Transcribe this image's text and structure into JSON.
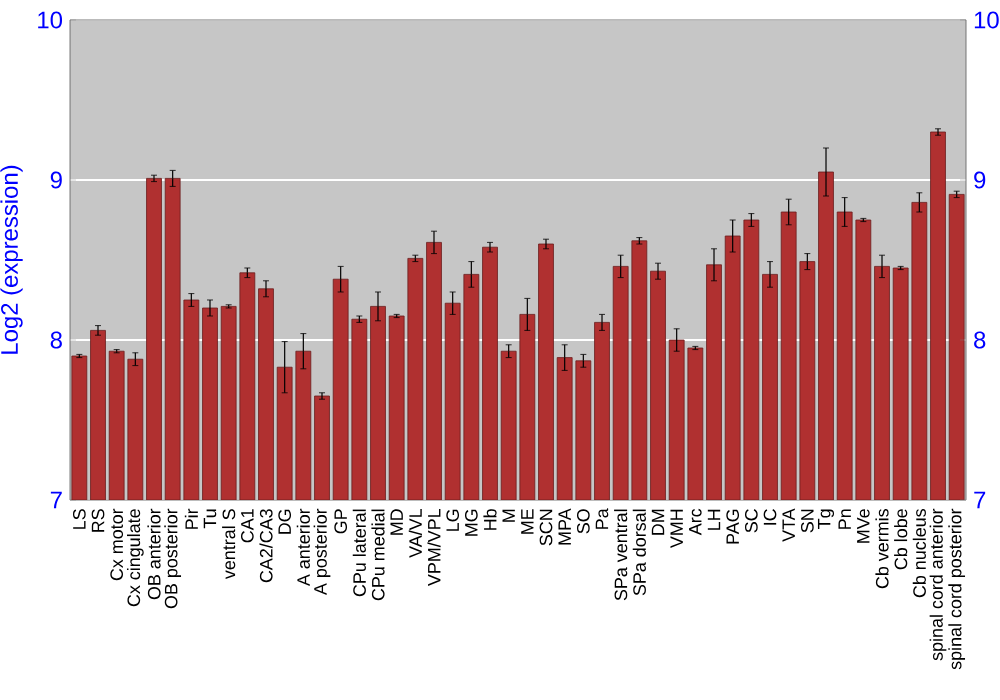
{
  "chart_data": {
    "type": "bar",
    "ylabel": "Log2 (expression)",
    "categories": [
      "LS",
      "RS",
      "Cx motor",
      "Cx cingulate",
      "OB anterior",
      "OB posterior",
      "Pir",
      "Tu",
      "ventral S",
      "CA1",
      "CA2/CA3",
      "DG",
      "A anterior",
      "A posterior",
      "GP",
      "CPu lateral",
      "CPu medial",
      "MD",
      "VA/VL",
      "VPM/VPL",
      "LG",
      "MG",
      "Hb",
      "M",
      "ME",
      "SCN",
      "MPA",
      "SO",
      "Pa",
      "SPa ventral",
      "SPa dorsal",
      "DM",
      "VMH",
      "Arc",
      "LH",
      "PAG",
      "SC",
      "IC",
      "VTA",
      "SN",
      "Tg",
      "Pn",
      "MVe",
      "Cb vermis",
      "Cb lobe",
      "Cb nucleus",
      "spinal cord anterior",
      "spinal cord posterior"
    ],
    "values": [
      7.9,
      8.06,
      7.93,
      7.88,
      9.01,
      9.01,
      8.25,
      8.2,
      8.21,
      8.42,
      8.32,
      7.83,
      7.93,
      7.65,
      8.38,
      8.13,
      8.21,
      8.15,
      8.51,
      8.61,
      8.23,
      8.41,
      8.58,
      7.93,
      8.16,
      8.6,
      7.89,
      7.87,
      8.11,
      8.46,
      8.62,
      8.43,
      8.0,
      7.95,
      8.47,
      8.65,
      8.75,
      8.41,
      8.8,
      8.49,
      9.05,
      8.8,
      8.75,
      8.46,
      8.45,
      8.86,
      9.3,
      8.91
    ],
    "errors": [
      0.01,
      0.03,
      0.01,
      0.04,
      0.02,
      0.05,
      0.04,
      0.05,
      0.01,
      0.03,
      0.05,
      0.16,
      0.11,
      0.02,
      0.08,
      0.02,
      0.09,
      0.01,
      0.02,
      0.07,
      0.07,
      0.08,
      0.03,
      0.04,
      0.1,
      0.03,
      0.08,
      0.04,
      0.05,
      0.07,
      0.02,
      0.05,
      0.07,
      0.01,
      0.1,
      0.1,
      0.04,
      0.08,
      0.08,
      0.05,
      0.15,
      0.09,
      0.01,
      0.07,
      0.01,
      0.06,
      0.02,
      0.02
    ],
    "color": "#b03030",
    "ylim": [
      7,
      10
    ],
    "yticks": [
      7,
      8,
      9,
      10
    ],
    "y2lim": [
      7,
      10
    ],
    "y2ticks": [
      7,
      8,
      9,
      10
    ],
    "grid": "y"
  }
}
